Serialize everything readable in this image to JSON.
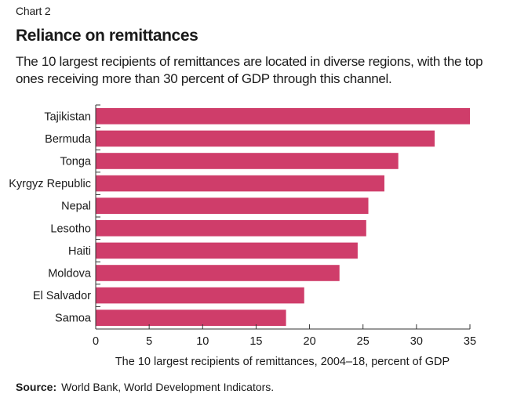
{
  "header": {
    "chart_number": "Chart 2",
    "title": "Reliance on remittances",
    "subtitle": "The 10 largest recipients of remittances are located in diverse regions, with the top ones receiving more than 30 percent of GDP through this channel."
  },
  "footer": {
    "source_label": "Source:",
    "source_text": "World Bank, World Development Indicators."
  },
  "colors": {
    "bar": "#cf3d6a",
    "axis": "#333333",
    "text": "#1a1a1a"
  },
  "chart_data": {
    "type": "bar",
    "orientation": "horizontal",
    "title": "Reliance on remittances",
    "categories": [
      "Tajikistan",
      "Bermuda",
      "Tonga",
      "Kyrgyz Republic",
      "Nepal",
      "Lesotho",
      "Haiti",
      "Moldova",
      "El Salvador",
      "Samoa"
    ],
    "values": [
      35.0,
      31.7,
      28.3,
      27.0,
      25.5,
      25.3,
      24.5,
      22.8,
      19.5,
      17.8
    ],
    "xlabel": "The 10 largest recipients of remittances, 2004–18, percent of GDP",
    "ylabel": "",
    "xlim": [
      0,
      35
    ],
    "xticks": [
      0,
      5,
      10,
      15,
      20,
      25,
      30,
      35
    ],
    "grid": false
  }
}
